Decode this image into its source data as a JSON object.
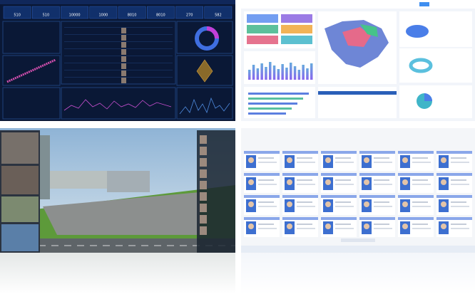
{
  "stats": {
    "values": [
      "510",
      "510",
      "10000",
      "1000",
      "8010",
      "8010",
      "270",
      "582"
    ]
  }
}
